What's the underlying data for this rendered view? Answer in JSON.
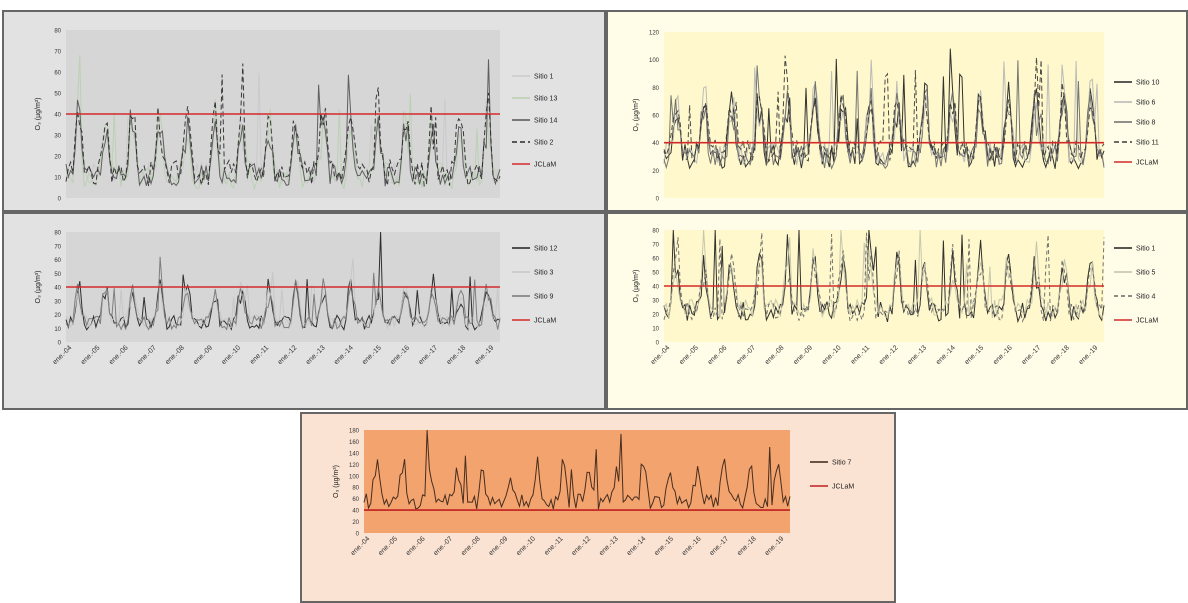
{
  "chart_data": [
    {
      "id": "p1",
      "type": "line",
      "panel_bg": "#e2e2e2",
      "plot_bg": "#d6d6d6",
      "ylabel": "O₃ (µg/m³)",
      "ylim": [
        0,
        80
      ],
      "yticks": [
        "0",
        "10",
        "20",
        "30",
        "40",
        "50",
        "60",
        "70",
        "80"
      ],
      "xtick_labels": [],
      "legend_position": "right",
      "series": [
        {
          "name": "Sitio 1",
          "color": "#c9c9c9",
          "dash": "",
          "seed": 11,
          "base": 12,
          "amp": 24,
          "max": 70
        },
        {
          "name": "Sitio 13",
          "color": "#b9d0b0",
          "dash": "",
          "seed": 23,
          "base": 10,
          "amp": 26,
          "max": 68
        },
        {
          "name": "Sitio 14",
          "color": "#555555",
          "dash": "",
          "seed": 37,
          "base": 11,
          "amp": 24,
          "max": 66
        },
        {
          "name": "Sitio 2",
          "color": "#2a2a2a",
          "dash": "5,3",
          "seed": 41,
          "base": 12,
          "amp": 28,
          "max": 72
        }
      ],
      "reference": {
        "name": "JCLaM",
        "value": 40,
        "color": "#d42a2a"
      }
    },
    {
      "id": "p2",
      "type": "line",
      "panel_bg": "#fffce8",
      "plot_bg": "#fff8cc",
      "ylabel": "O₃ (µg/m³)",
      "ylim": [
        0,
        120
      ],
      "yticks": [
        "0",
        "20",
        "40",
        "60",
        "80",
        "100",
        "120"
      ],
      "xtick_labels": [],
      "legend_position": "right",
      "series": [
        {
          "name": "Sitio 10",
          "color": "#222222",
          "dash": "",
          "seed": 53,
          "base": 30,
          "amp": 40,
          "max": 108
        },
        {
          "name": "Sitio 6",
          "color": "#b5b5b5",
          "dash": "",
          "seed": 61,
          "base": 32,
          "amp": 38,
          "max": 100
        },
        {
          "name": "Sitio 8",
          "color": "#6a6a6a",
          "dash": "",
          "seed": 79,
          "base": 30,
          "amp": 40,
          "max": 104
        },
        {
          "name": "Sitio 11",
          "color": "#3a3a3a",
          "dash": "5,3",
          "seed": 83,
          "base": 34,
          "amp": 36,
          "max": 106
        }
      ],
      "reference": {
        "name": "JCLaM",
        "value": 40,
        "color": "#d42a2a"
      }
    },
    {
      "id": "p3",
      "type": "line",
      "panel_bg": "#e2e2e2",
      "plot_bg": "#d6d6d6",
      "ylabel": "O₃ (µg/m³)",
      "ylim": [
        0,
        80
      ],
      "yticks": [
        "0",
        "10",
        "20",
        "30",
        "40",
        "50",
        "60",
        "70",
        "80"
      ],
      "xtick_labels": [
        "ene.-04",
        "ene.-05",
        "ene.-06",
        "ene.-07",
        "ene.-08",
        "ene.-09",
        "ene.-10",
        "ene.-11",
        "ene.-12",
        "ene.-13",
        "ene.-14",
        "ene.-15",
        "ene.-16",
        "ene.-17",
        "ene.-18",
        "ene.-19"
      ],
      "legend_position": "right",
      "series": [
        {
          "name": "Sitio 12",
          "color": "#1f1f1f",
          "dash": "",
          "seed": 97,
          "base": 14,
          "amp": 24,
          "max": 80
        },
        {
          "name": "Sitio 3",
          "color": "#c6c6c6",
          "dash": "",
          "seed": 101,
          "base": 15,
          "amp": 22,
          "max": 64
        },
        {
          "name": "Sitio 9",
          "color": "#777777",
          "dash": "",
          "seed": 113,
          "base": 14,
          "amp": 22,
          "max": 62
        }
      ],
      "reference": {
        "name": "JCLaM",
        "value": 40,
        "color": "#d42a2a"
      }
    },
    {
      "id": "p4",
      "type": "line",
      "panel_bg": "#fffce8",
      "plot_bg": "#fff8cc",
      "ylabel": "O₃ (µg/m³)",
      "ylim": [
        0,
        80
      ],
      "yticks": [
        "0",
        "10",
        "20",
        "30",
        "40",
        "50",
        "60",
        "70",
        "80"
      ],
      "xtick_labels": [
        "ene.-04",
        "ene.-05",
        "ene.-06",
        "ene.-07",
        "ene.-08",
        "ene.-09",
        "ene.-10",
        "ene.-11",
        "ene.-12",
        "ene.-13",
        "ene.-14",
        "ene.-15",
        "ene.-16",
        "ene.-17",
        "ene.-18",
        "ene.-19"
      ],
      "legend_position": "right",
      "series": [
        {
          "name": "Sitio 1",
          "color": "#1f1f1f",
          "dash": "",
          "seed": 131,
          "base": 22,
          "amp": 34,
          "max": 80
        },
        {
          "name": "Sitio 5",
          "color": "#c2c2a8",
          "dash": "",
          "seed": 137,
          "base": 24,
          "amp": 32,
          "max": 80
        },
        {
          "name": "Sitio 4",
          "color": "#666666",
          "dash": "4,3",
          "seed": 149,
          "base": 22,
          "amp": 32,
          "max": 78
        }
      ],
      "reference": {
        "name": "JCLaM",
        "value": 40,
        "color": "#d42a2a"
      }
    },
    {
      "id": "p5",
      "type": "line",
      "panel_bg": "#fbe3d3",
      "plot_bg": "#f2a36e",
      "ylabel": "O₃ (µg/m³)",
      "ylim": [
        0,
        180
      ],
      "yticks": [
        "0",
        "20",
        "40",
        "60",
        "80",
        "100",
        "120",
        "140",
        "160",
        "180"
      ],
      "xtick_labels": [
        "ene.-04",
        "ene.-05",
        "ene.-06",
        "ene.-07",
        "ene.-08",
        "ene.-09",
        "ene.-10",
        "ene.-11",
        "ene.-12",
        "ene.-13",
        "ene.-14",
        "ene.-15",
        "ene.-16",
        "ene.-17",
        "ene.-18",
        "ene.-19"
      ],
      "legend_position": "right",
      "series": [
        {
          "name": "Sitio 7",
          "color": "#3a2418",
          "dash": "",
          "seed": 157,
          "base": 55,
          "amp": 60,
          "max": 180
        }
      ],
      "reference": {
        "name": "JCLaM",
        "value": 40,
        "color": "#c02020"
      }
    }
  ]
}
